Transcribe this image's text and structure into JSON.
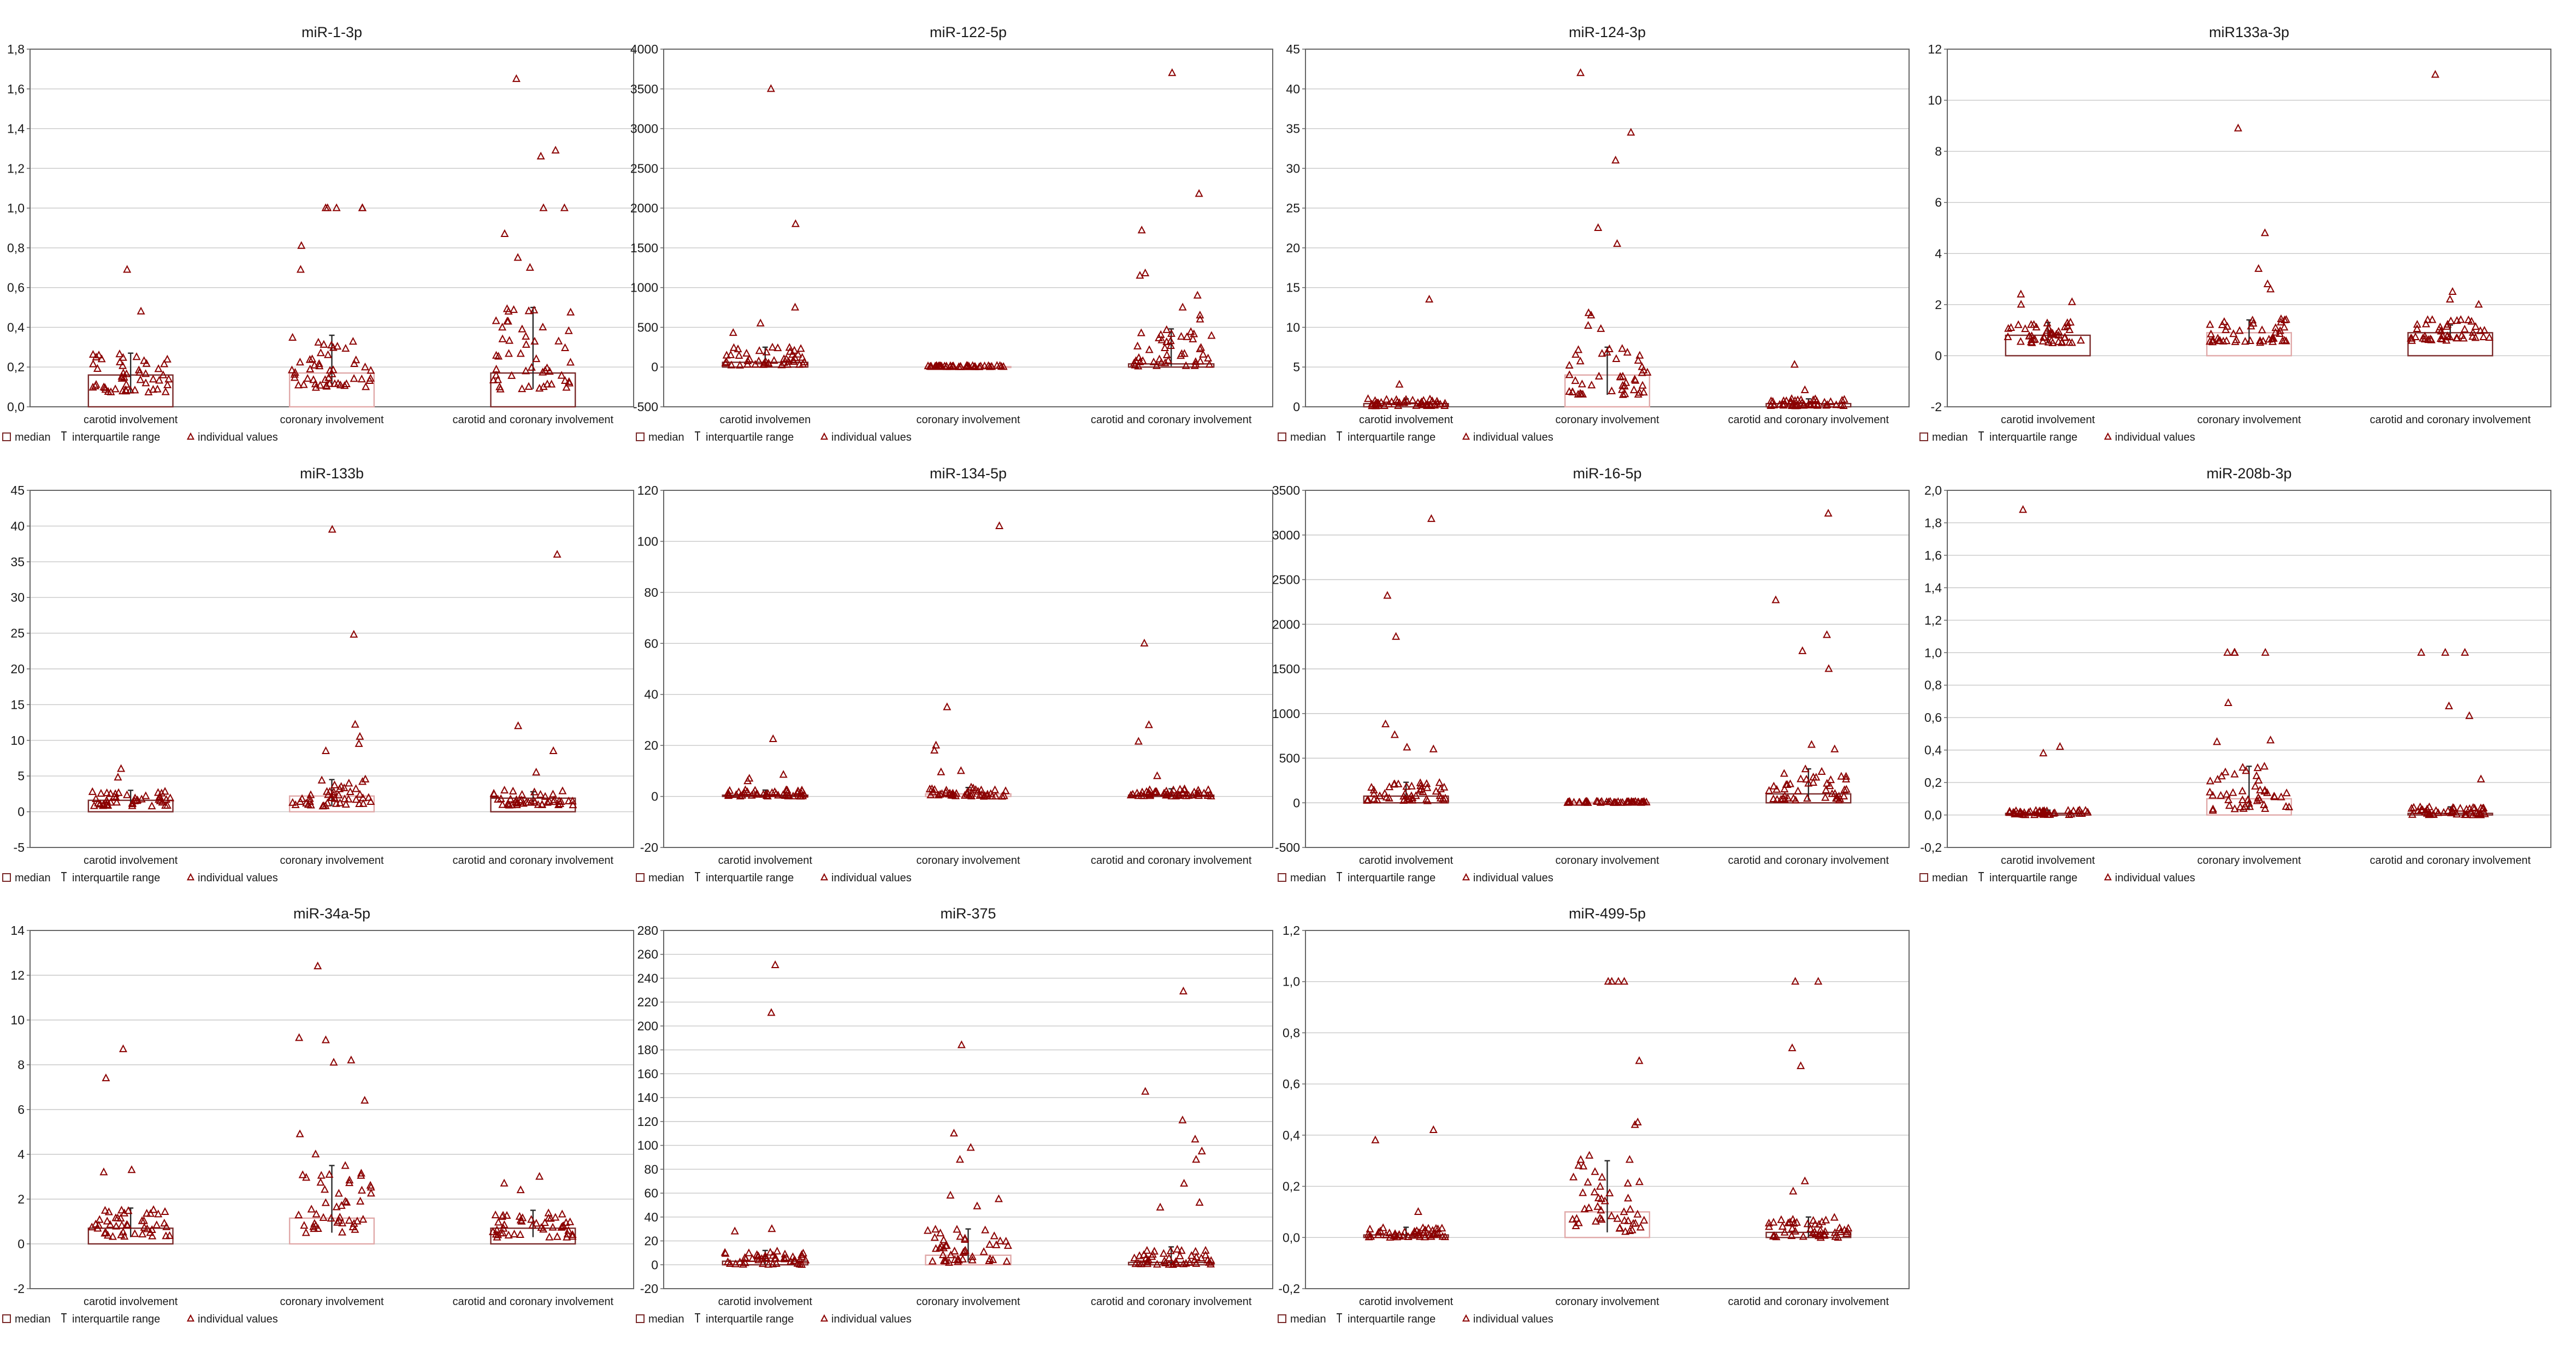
{
  "colors": {
    "point": "#8b0000",
    "bar_stroke": "#7a2a2a",
    "grid": "#c8c8c8"
  },
  "legend": {
    "median": "median",
    "iqr": "interquartile range",
    "values": "individual values"
  },
  "chart_data": [
    {
      "type": "bar",
      "title": "miR-1-3p",
      "ylim": [
        0,
        1.8
      ],
      "yticks": [
        "0,0",
        "0,2",
        "0,4",
        "0,6",
        "0,8",
        "1,0",
        "1,2",
        "1,4",
        "1,6",
        "1,8"
      ],
      "categories": [
        "carotid involvement",
        "coronary involvement",
        "carotid and coronary involvement"
      ],
      "median": [
        0.16,
        0.17,
        0.17
      ],
      "q1": [
        0.07,
        0.1,
        0.09
      ],
      "q3": [
        0.27,
        0.36,
        0.5
      ],
      "outliers": [
        [
          0.69,
          0.48
        ],
        [
          1.0,
          1.0,
          1.0,
          1.0,
          1.0,
          0.81,
          0.69
        ],
        [
          1.65,
          1.29,
          1.26,
          1.0,
          1.0,
          0.87,
          0.75,
          0.7
        ]
      ],
      "n": 50
    },
    {
      "type": "bar",
      "title": "miR-122-5p",
      "ylim": [
        -500,
        4000
      ],
      "yticks": [
        "-500",
        "0",
        "500",
        "1000",
        "1500",
        "2000",
        "2500",
        "3000",
        "3500",
        "4000"
      ],
      "categories": [
        "carotid involvemen",
        "coronary involvement",
        "carotid and coronary involvement"
      ],
      "median": [
        60,
        5,
        40
      ],
      "q1": [
        20,
        0,
        10
      ],
      "q3": [
        250,
        20,
        480
      ],
      "outliers": [
        [
          3500,
          1800,
          750,
          550,
          430
        ],
        [],
        [
          3700,
          2180,
          1720,
          1180,
          1150,
          900,
          750,
          650,
          600
        ]
      ],
      "n": 45
    },
    {
      "type": "bar",
      "title": "miR-124-3p",
      "ylim": [
        0,
        45
      ],
      "yticks": [
        "0",
        "5",
        "10",
        "15",
        "20",
        "25",
        "30",
        "35",
        "40",
        "45"
      ],
      "categories": [
        "carotid involvement",
        "coronary involvement",
        "carotid and coronary involvement"
      ],
      "median": [
        0.4,
        4.0,
        0.4
      ],
      "q1": [
        0.1,
        1.5,
        0.1
      ],
      "q3": [
        1.0,
        7.5,
        1.0
      ],
      "outliers": [
        [
          13.5,
          2.8
        ],
        [
          42,
          34.5,
          31,
          22.5,
          20.5,
          11.8,
          11.5,
          10.2,
          9.8
        ],
        [
          5.3,
          2.1
        ]
      ],
      "n": 45
    },
    {
      "type": "bar",
      "title": "miR133a-3p",
      "ylim": [
        -2,
        12
      ],
      "yticks": [
        "-2",
        "0",
        "2",
        "4",
        "6",
        "8",
        "10",
        "12"
      ],
      "categories": [
        "carotid involvement",
        "coronary involvement",
        "carotid and coronary involvement"
      ],
      "median": [
        0.8,
        0.9,
        0.9
      ],
      "q1": [
        0.5,
        0.5,
        0.6
      ],
      "q3": [
        1.3,
        1.4,
        1.2
      ],
      "outliers": [
        [
          2.4,
          2.1,
          2.0
        ],
        [
          8.9,
          4.8,
          3.4,
          2.8,
          2.6
        ],
        [
          11.0,
          2.5,
          2.2,
          2.0
        ]
      ],
      "n": 45
    },
    {
      "type": "bar",
      "title": "miR-133b",
      "ylim": [
        -5,
        45
      ],
      "yticks": [
        "-5",
        "0",
        "5",
        "10",
        "15",
        "20",
        "25",
        "30",
        "35",
        "40",
        "45"
      ],
      "categories": [
        "carotid involvement",
        "coronary involvement",
        "carotid and coronary involvement"
      ],
      "median": [
        1.6,
        2.2,
        1.9
      ],
      "q1": [
        0.8,
        0.8,
        0.9
      ],
      "q3": [
        3.0,
        4.5,
        2.8
      ],
      "outliers": [
        [
          6.0,
          4.8
        ],
        [
          39.5,
          24.8,
          12.2,
          10.5,
          9.5,
          8.5
        ],
        [
          36.0,
          12.0,
          8.5,
          5.5
        ]
      ],
      "n": 45
    },
    {
      "type": "bar",
      "title": "miR-134-5p",
      "ylim": [
        -20,
        120
      ],
      "yticks": [
        "-20",
        "0",
        "20",
        "40",
        "60",
        "80",
        "100",
        "120"
      ],
      "categories": [
        "carotid involvement",
        "coronary involvement",
        "carotid and coronary involvement"
      ],
      "median": [
        0.5,
        1.0,
        0.5
      ],
      "q1": [
        0,
        0,
        0
      ],
      "q3": [
        2.5,
        3.5,
        3.0
      ],
      "outliers": [
        [
          22.5,
          8.5,
          7,
          6
        ],
        [
          106,
          35,
          20,
          18,
          10,
          9.5
        ],
        [
          60,
          28,
          21.5,
          8
        ]
      ],
      "n": 45
    },
    {
      "type": "bar",
      "title": "miR-16-5p",
      "ylim": [
        -500,
        3500
      ],
      "yticks": [
        "-500",
        "0",
        "500",
        "1000",
        "1500",
        "2000",
        "2500",
        "3000",
        "3500"
      ],
      "categories": [
        "carotid involvement",
        "coronary involvement",
        "carotid and coronary involvement"
      ],
      "median": [
        75,
        5,
        100
      ],
      "q1": [
        20,
        0,
        30
      ],
      "q3": [
        230,
        15,
        380
      ],
      "outliers": [
        [
          3180,
          2320,
          1860,
          880,
          760,
          620,
          600
        ],
        [],
        [
          3240,
          2270,
          1880,
          1700,
          1500,
          650,
          600
        ]
      ],
      "n": 45
    },
    {
      "type": "bar",
      "title": "miR-208b-3p",
      "ylim": [
        -0.2,
        2.0
      ],
      "yticks": [
        "-0,2",
        "0,0",
        "0,2",
        "0,4",
        "0,6",
        "0,8",
        "1,0",
        "1,2",
        "1,4",
        "1,6",
        "1,8",
        "2,0"
      ],
      "categories": [
        "carotid involvement",
        "coronary involvement",
        "carotid and coronary involvement"
      ],
      "median": [
        0.01,
        0.1,
        0.01
      ],
      "q1": [
        0,
        0.03,
        0
      ],
      "q3": [
        0.03,
        0.3,
        0.05
      ],
      "outliers": [
        [
          1.88,
          0.42,
          0.38
        ],
        [
          1.0,
          1.0,
          1.0,
          1.0,
          0.69,
          0.46,
          0.45
        ],
        [
          1.0,
          1.0,
          1.0,
          0.67,
          0.61,
          0.22
        ]
      ],
      "n": 45
    },
    {
      "type": "bar",
      "title": "miR-34a-5p",
      "ylim": [
        -2,
        14
      ],
      "yticks": [
        "-2",
        "0",
        "2",
        "4",
        "6",
        "8",
        "10",
        "12",
        "14"
      ],
      "categories": [
        "carotid involvement",
        "coronary involvement",
        "carotid and coronary involvement"
      ],
      "median": [
        0.7,
        1.15,
        0.7
      ],
      "q1": [
        0.3,
        0.5,
        0.3
      ],
      "q3": [
        1.6,
        3.5,
        1.5
      ],
      "outliers": [
        [
          8.7,
          7.4,
          3.3,
          3.2
        ],
        [
          12.4,
          9.2,
          9.1,
          8.2,
          8.1,
          6.4,
          4.9,
          4.0
        ],
        [
          3.0,
          2.7,
          2.4
        ]
      ],
      "n": 45
    },
    {
      "type": "bar",
      "title": "miR-375",
      "ylim": [
        -20,
        280
      ],
      "yticks": [
        "-20",
        "0",
        "20",
        "40",
        "60",
        "80",
        "100",
        "120",
        "140",
        "160",
        "180",
        "200",
        "220",
        "240",
        "260",
        "280"
      ],
      "categories": [
        "carotid involvement",
        "coronary involvement",
        "carotid and coronary involvement"
      ],
      "median": [
        3,
        8,
        2
      ],
      "q1": [
        0,
        2,
        0
      ],
      "q3": [
        12,
        30,
        15
      ],
      "outliers": [
        [
          251,
          211,
          30,
          28
        ],
        [
          184,
          110,
          98,
          88,
          58,
          55,
          49
        ],
        [
          229,
          145,
          121,
          105,
          95,
          88,
          68,
          52,
          48
        ]
      ],
      "n": 45
    },
    {
      "type": "bar",
      "title": "miR-499-5p",
      "ylim": [
        -0.2,
        1.2
      ],
      "yticks": [
        "-0,2",
        "0,0",
        "0,2",
        "0,4",
        "0,6",
        "0,8",
        "1,0",
        "1,2"
      ],
      "categories": [
        "carotid involvement",
        "coronary involvement",
        "carotid and coronary involvement"
      ],
      "median": [
        0.01,
        0.1,
        0.02
      ],
      "q1": [
        0,
        0.02,
        0
      ],
      "q3": [
        0.04,
        0.3,
        0.08
      ],
      "outliers": [
        [
          0.42,
          0.38,
          0.1
        ],
        [
          1.0,
          1.0,
          1.0,
          1.0,
          0.69,
          0.45,
          0.44,
          0.32
        ],
        [
          1.0,
          1.0,
          0.74,
          0.67,
          0.22,
          0.18
        ]
      ],
      "n": 45
    }
  ]
}
